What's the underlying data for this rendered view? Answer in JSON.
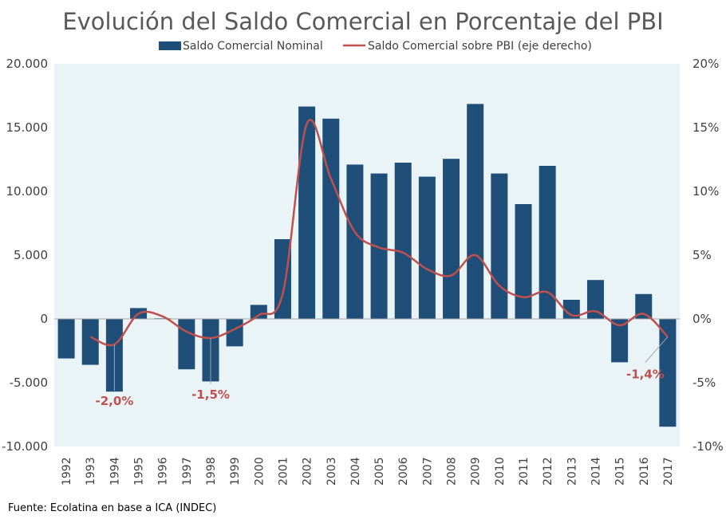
{
  "chart_data": {
    "type": "bar+line",
    "title": "Evolución del Saldo Comercial en Porcentaje del PBI",
    "source": "Fuente: Ecolatina en base a ICA (INDEC)",
    "categories": [
      "1992",
      "1993",
      "1994",
      "1995",
      "1996",
      "1997",
      "1998",
      "1999",
      "2000",
      "2001",
      "2002",
      "2003",
      "2004",
      "2005",
      "2006",
      "2007",
      "2008",
      "2009",
      "2010",
      "2011",
      "2012",
      "2013",
      "2014",
      "2015",
      "2016",
      "2017"
    ],
    "series": [
      {
        "name": "Saldo Comercial Nominal",
        "type": "bar",
        "axis": "left",
        "color": "#1f4e79",
        "values": [
          -3100,
          -3600,
          -5700,
          850,
          50,
          -3950,
          -4900,
          -2150,
          1100,
          6250,
          16650,
          15700,
          12100,
          11400,
          12250,
          11150,
          12550,
          16850,
          11400,
          9000,
          12000,
          1500,
          3050,
          -3400,
          1950,
          -8450
        ]
      },
      {
        "name": "Saldo Comercial sobre PBI (eje derecho)",
        "type": "line",
        "axis": "right",
        "color": "#c0504d",
        "values": [
          null,
          -1.4,
          -2.0,
          0.4,
          0.2,
          -1.0,
          -1.5,
          -0.8,
          0.3,
          2.0,
          15.3,
          11.0,
          6.8,
          5.6,
          5.2,
          3.9,
          3.4,
          5.0,
          2.6,
          1.7,
          2.1,
          0.3,
          0.6,
          -0.5,
          0.4,
          -1.4
        ]
      }
    ],
    "yleft": {
      "lim": [
        -10000,
        20000
      ],
      "ticks": [
        20000,
        15000,
        10000,
        5000,
        0,
        -5000,
        -10000
      ],
      "tick_labels": [
        "20.000",
        "15.000",
        "10.000",
        "5.000",
        "0",
        "-5.000",
        "-10.000"
      ]
    },
    "yright": {
      "lim": [
        -10,
        20
      ],
      "ticks": [
        20,
        15,
        10,
        5,
        0,
        -5,
        -10
      ],
      "tick_labels": [
        "20%",
        "15%",
        "10%",
        "5%",
        "0%",
        "-5%",
        "-10%"
      ]
    },
    "annotations": [
      {
        "category": "1994",
        "text": "-2,0%"
      },
      {
        "category": "1998",
        "text": "-1,5%"
      },
      {
        "category": "2017",
        "text": "-1,4%"
      }
    ],
    "legend_position": "top",
    "plot_background": "#eaf4f7",
    "grid": false
  }
}
